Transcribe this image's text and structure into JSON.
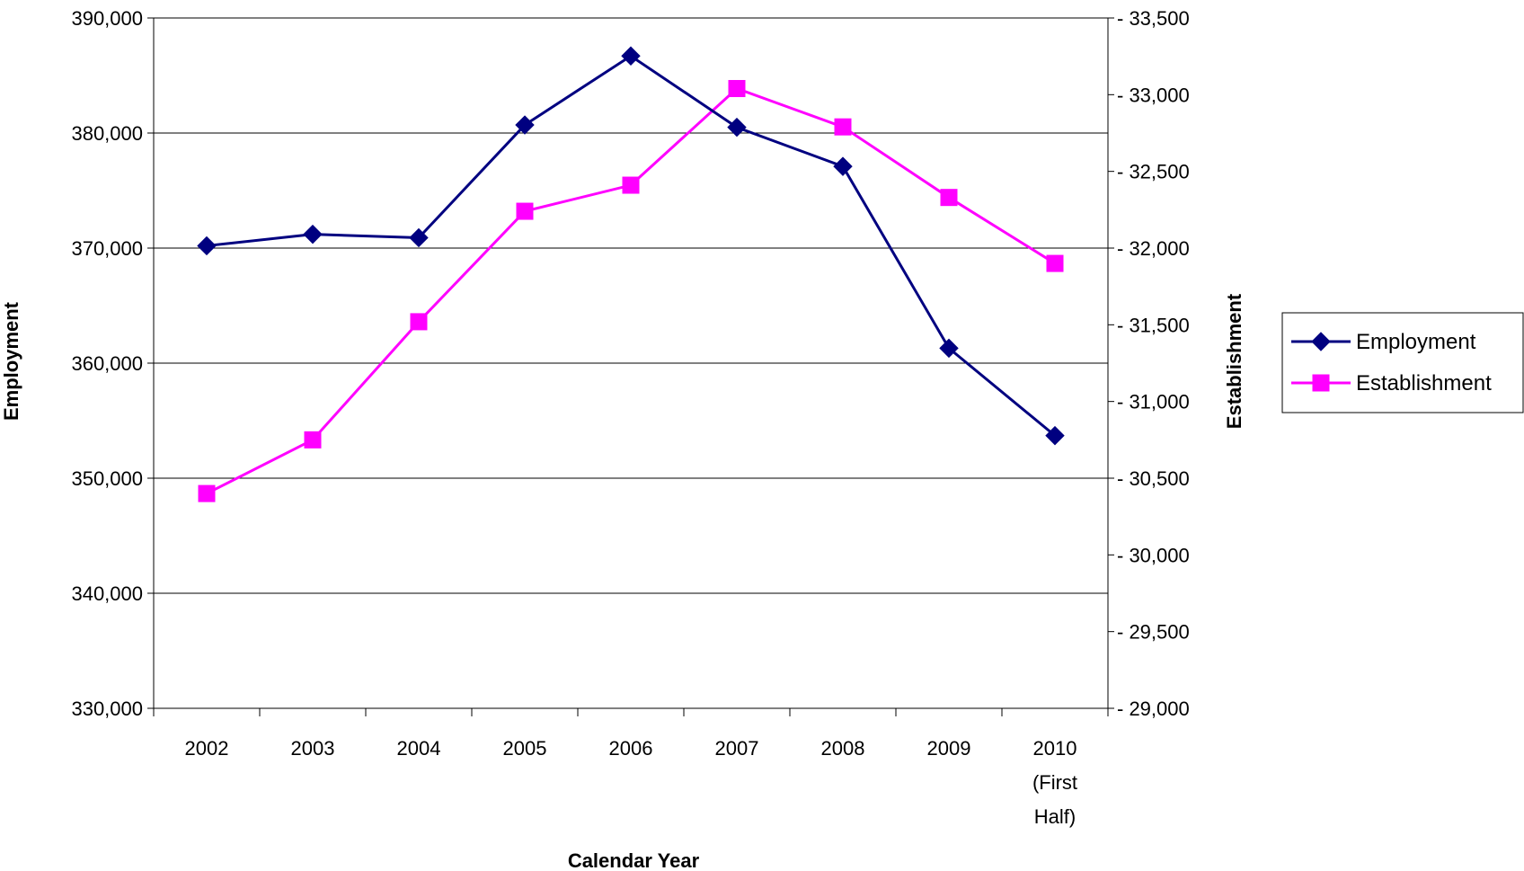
{
  "chart_data": {
    "type": "line",
    "title": "",
    "xlabel": "Calendar Year",
    "ylabel_left": "Employment",
    "ylabel_right": "Establishment",
    "categories": [
      "2002",
      "2003",
      "2004",
      "2005",
      "2006",
      "2007",
      "2008",
      "2009",
      "2010 (First Half)"
    ],
    "category_label_lines": [
      [
        "2002"
      ],
      [
        "2003"
      ],
      [
        "2004"
      ],
      [
        "2005"
      ],
      [
        "2006"
      ],
      [
        "2007"
      ],
      [
        "2008"
      ],
      [
        "2009"
      ],
      [
        "2010",
        "(First",
        "Half)"
      ]
    ],
    "y_left": {
      "lim": [
        330000,
        390000
      ],
      "ticks": [
        330000,
        340000,
        350000,
        360000,
        370000,
        380000,
        390000
      ],
      "tick_labels": [
        "330,000",
        "340,000",
        "350,000",
        "360,000",
        "370,000",
        "380,000",
        "390,000"
      ]
    },
    "y_right": {
      "lim": [
        29000,
        33500
      ],
      "ticks": [
        29000,
        29500,
        30000,
        30500,
        31000,
        31500,
        32000,
        32500,
        33000,
        33500
      ],
      "tick_labels": [
        "29,000",
        "29,500",
        "30,000",
        "30,500",
        "31,000",
        "31,500",
        "32,000",
        "32,500",
        "33,000",
        "33,500"
      ]
    },
    "grid": true,
    "legend_position": "right",
    "series": [
      {
        "name": "Employment",
        "axis": "left",
        "color": "#000080",
        "marker": "diamond",
        "values": [
          370200,
          371200,
          370900,
          380700,
          386700,
          380500,
          377100,
          361300,
          353700
        ]
      },
      {
        "name": "Establishment",
        "axis": "right",
        "color": "#FF00FF",
        "marker": "square",
        "values": [
          30400,
          30750,
          31520,
          32240,
          32410,
          33040,
          32790,
          32330,
          31900
        ]
      }
    ]
  }
}
